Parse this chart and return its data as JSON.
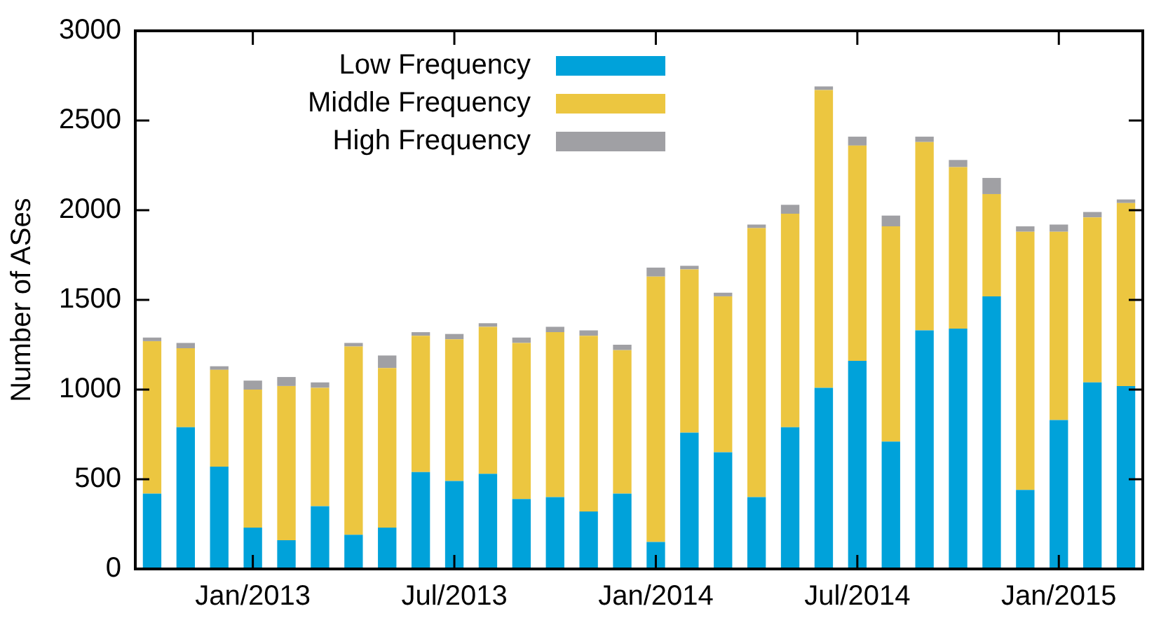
{
  "chart_data": {
    "type": "bar",
    "stacked": true,
    "ylabel": "Number of ASes",
    "categories": [
      null,
      null,
      null,
      "Jan/2013",
      null,
      null,
      null,
      null,
      null,
      "Jul/2013",
      null,
      null,
      null,
      null,
      null,
      "Jan/2014",
      null,
      null,
      null,
      null,
      null,
      "Jul/2014",
      null,
      null,
      null,
      null,
      null,
      "Jan/2015",
      null,
      null
    ],
    "series": [
      {
        "name": "Low Frequency",
        "color": "#00a2da",
        "values": [
          420,
          790,
          570,
          230,
          160,
          350,
          190,
          230,
          540,
          490,
          530,
          390,
          400,
          320,
          420,
          150,
          760,
          650,
          400,
          790,
          1010,
          1160,
          710,
          1330,
          1340,
          1520,
          440,
          830,
          1040,
          1020
        ]
      },
      {
        "name": "Middle Frequency",
        "color": "#ecc640",
        "values": [
          850,
          440,
          540,
          770,
          860,
          660,
          1050,
          890,
          760,
          790,
          820,
          870,
          920,
          980,
          800,
          1480,
          910,
          870,
          1500,
          1190,
          1660,
          1200,
          1200,
          1050,
          900,
          570,
          1440,
          1050,
          920,
          1020
        ]
      },
      {
        "name": "High Frequency",
        "color": "#a0a0a4",
        "values": [
          20,
          30,
          20,
          50,
          50,
          30,
          20,
          70,
          20,
          30,
          20,
          30,
          30,
          30,
          30,
          50,
          20,
          20,
          20,
          50,
          20,
          50,
          60,
          30,
          40,
          90,
          30,
          40,
          30,
          20
        ]
      }
    ],
    "ylim": [
      0,
      3000
    ],
    "yticks": [
      0,
      500,
      1000,
      1500,
      2000,
      2500,
      3000
    ],
    "grid": false,
    "legend": "top left"
  }
}
